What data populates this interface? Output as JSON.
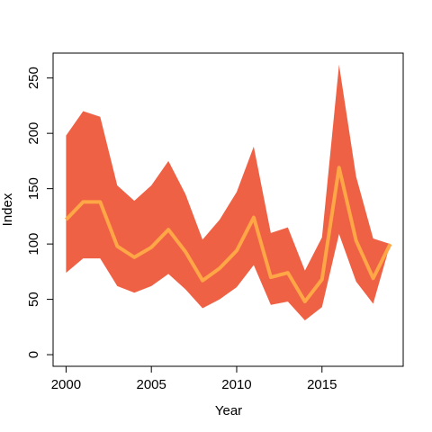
{
  "chart_data": {
    "type": "band-line",
    "xlabel": "Year",
    "ylabel": "Index",
    "x": [
      2000,
      2001,
      2002,
      2003,
      2004,
      2005,
      2006,
      2007,
      2008,
      2009,
      2010,
      2011,
      2012,
      2013,
      2014,
      2015,
      2016,
      2017,
      2018,
      2019
    ],
    "band": {
      "color": "#ef6145",
      "upper": [
        198,
        220,
        215,
        153,
        139,
        153,
        175,
        145,
        104,
        122,
        147,
        188,
        110,
        115,
        76,
        106,
        262,
        161,
        105,
        100
      ],
      "lower": [
        74,
        87,
        87,
        62,
        56,
        62,
        73,
        59,
        42,
        50,
        61,
        81,
        45,
        48,
        31,
        43,
        109,
        66,
        46,
        100
      ]
    },
    "line": {
      "color": "#ffa646",
      "values": [
        122,
        138,
        138,
        98,
        88,
        97,
        113,
        93,
        67,
        78,
        94,
        124,
        70,
        74,
        48,
        68,
        169,
        103,
        69,
        100
      ]
    },
    "xlim": [
      1999.24,
      2019.76
    ],
    "xticks": [
      2000,
      2005,
      2010,
      2015
    ],
    "ylim": [
      -10.5,
      272.5
    ],
    "yticks": [
      0,
      50,
      100,
      150,
      200,
      250
    ]
  }
}
